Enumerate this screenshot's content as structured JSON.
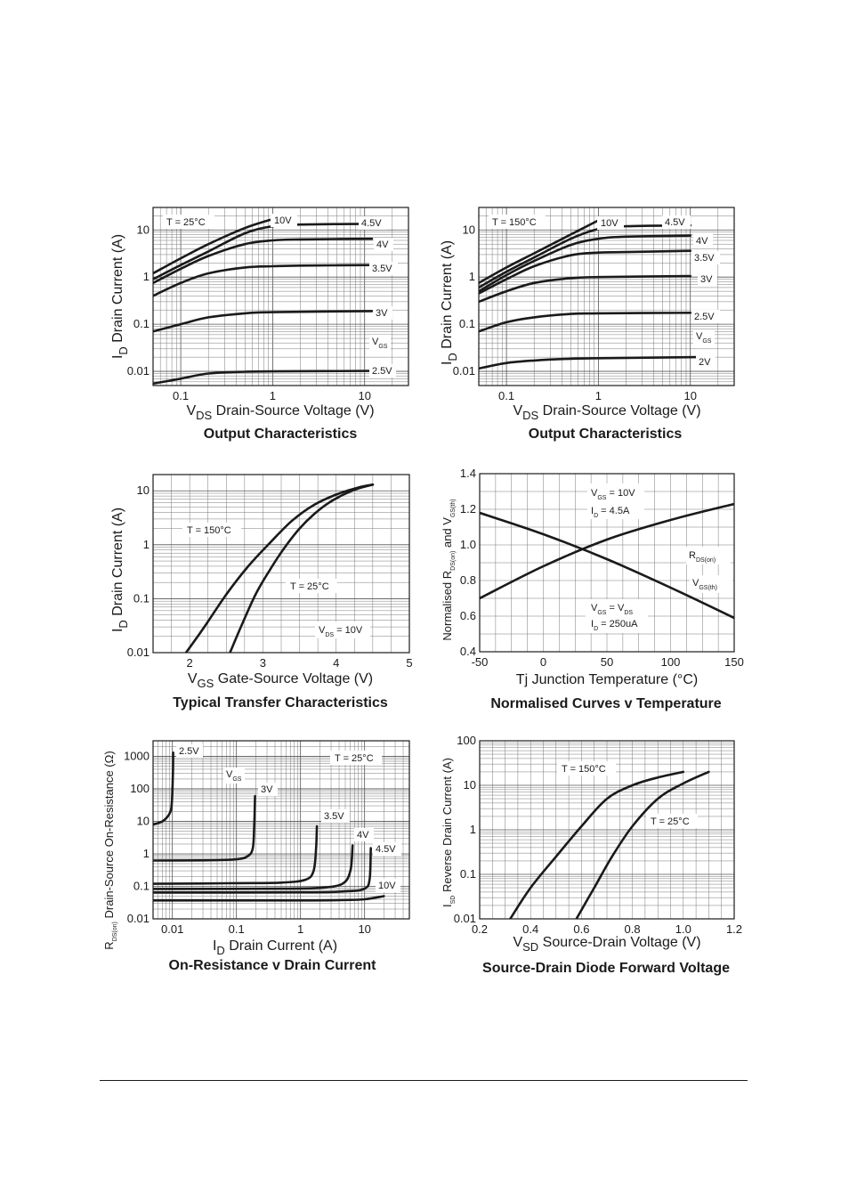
{
  "chart_data": [
    {
      "type": "line",
      "title": "Output Characteristics",
      "xlabel": "Drain-Source Voltage (V)",
      "xsym": "V",
      "xsub": "DS",
      "ylabel": "Drain Current (A)",
      "ysym": "I",
      "ysub": "D",
      "xscale": "log",
      "yscale": "log",
      "xlim": [
        0.05,
        30
      ],
      "ylim": [
        0.005,
        30
      ],
      "xticks": [
        {
          "v": 0.1,
          "t": "0.1"
        },
        {
          "v": 1,
          "t": "1"
        },
        {
          "v": 10,
          "t": "10"
        }
      ],
      "yticks": [
        {
          "v": 0.01,
          "t": "0.01"
        },
        {
          "v": 0.1,
          "t": "0.1"
        },
        {
          "v": 1,
          "t": "1"
        },
        {
          "v": 10,
          "t": "10"
        }
      ],
      "grid": true,
      "condition": "T = 25°C",
      "param": {
        "sym": "V",
        "sub": "GS"
      },
      "series": [
        {
          "name": "10V",
          "x": [
            0.05,
            0.1,
            0.2,
            0.5,
            1.0
          ],
          "y": [
            1.2,
            2.5,
            5.0,
            11,
            17
          ]
        },
        {
          "name": "4.5V",
          "x": [
            0.05,
            0.1,
            0.2,
            0.5,
            1,
            2,
            12
          ],
          "y": [
            0.9,
            1.8,
            3.5,
            8.5,
            12,
            13,
            13.5
          ]
        },
        {
          "name": "4V",
          "x": [
            0.05,
            0.1,
            0.2,
            0.5,
            1,
            2,
            12
          ],
          "y": [
            0.75,
            1.5,
            2.8,
            5.0,
            6.0,
            6.3,
            6.5
          ]
        },
        {
          "name": "3.5V",
          "x": [
            0.05,
            0.1,
            0.2,
            0.5,
            1,
            2,
            12
          ],
          "y": [
            0.4,
            0.75,
            1.2,
            1.6,
            1.7,
            1.75,
            1.8
          ]
        },
        {
          "name": "3V",
          "x": [
            0.05,
            0.1,
            0.2,
            0.5,
            1,
            12
          ],
          "y": [
            0.07,
            0.1,
            0.14,
            0.17,
            0.18,
            0.19
          ]
        },
        {
          "name": "2.5V",
          "x": [
            0.05,
            0.1,
            0.2,
            0.5,
            1,
            12
          ],
          "y": [
            0.0055,
            0.007,
            0.009,
            0.0098,
            0.01,
            0.0102
          ]
        }
      ]
    },
    {
      "type": "line",
      "title": "Output Characteristics",
      "xlabel": "Drain-Source Voltage (V)",
      "xsym": "V",
      "xsub": "DS",
      "ylabel": "Drain Current (A)",
      "ysym": "I",
      "ysub": "D",
      "xscale": "log",
      "yscale": "log",
      "xlim": [
        0.05,
        30
      ],
      "ylim": [
        0.005,
        30
      ],
      "xticks": [
        {
          "v": 0.1,
          "t": "0.1"
        },
        {
          "v": 1,
          "t": "1"
        },
        {
          "v": 10,
          "t": "10"
        }
      ],
      "yticks": [
        {
          "v": 0.01,
          "t": "0.01"
        },
        {
          "v": 0.1,
          "t": "0.1"
        },
        {
          "v": 1,
          "t": "1"
        },
        {
          "v": 10,
          "t": "10"
        }
      ],
      "grid": true,
      "condition": "T = 150°C",
      "param": {
        "sym": "V",
        "sub": "GS"
      },
      "series": [
        {
          "name": "10V",
          "x": [
            0.05,
            0.1,
            0.2,
            0.5,
            1.0
          ],
          "y": [
            0.75,
            1.6,
            3.2,
            8,
            16
          ]
        },
        {
          "name": "4.5V",
          "x": [
            0.05,
            0.1,
            0.2,
            0.5,
            1,
            2,
            10
          ],
          "y": [
            0.6,
            1.3,
            2.6,
            6.5,
            10.5,
            12,
            12.5
          ]
        },
        {
          "name": "4V",
          "x": [
            0.05,
            0.1,
            0.2,
            0.5,
            1,
            2,
            10
          ],
          "y": [
            0.5,
            1.1,
            2.2,
            4.8,
            6.5,
            7.2,
            7.6
          ]
        },
        {
          "name": "3.5V",
          "x": [
            0.05,
            0.1,
            0.2,
            0.5,
            1,
            2,
            10
          ],
          "y": [
            0.45,
            0.9,
            1.7,
            2.9,
            3.3,
            3.4,
            3.6
          ]
        },
        {
          "name": "3V",
          "x": [
            0.05,
            0.1,
            0.2,
            0.5,
            1,
            10
          ],
          "y": [
            0.3,
            0.5,
            0.75,
            0.95,
            1.0,
            1.05
          ]
        },
        {
          "name": "2.5V",
          "x": [
            0.05,
            0.1,
            0.2,
            0.5,
            1,
            10
          ],
          "y": [
            0.07,
            0.11,
            0.14,
            0.165,
            0.17,
            0.175
          ]
        },
        {
          "name": "2V",
          "x": [
            0.05,
            0.1,
            0.2,
            0.5,
            1,
            12
          ],
          "y": [
            0.0115,
            0.015,
            0.017,
            0.0185,
            0.019,
            0.02
          ]
        }
      ]
    },
    {
      "type": "line",
      "title": "Typical Transfer Characteristics",
      "xlabel": "Gate-Source Voltage (V)",
      "xsym": "V",
      "xsub": "GS",
      "ylabel": "Drain Current (A)",
      "ysym": "I",
      "ysub": "D",
      "xscale": "linear",
      "yscale": "log",
      "xlim": [
        1.5,
        5
      ],
      "ylim": [
        0.01,
        20
      ],
      "xticks": [
        {
          "v": 2,
          "t": "2"
        },
        {
          "v": 3,
          "t": "3"
        },
        {
          "v": 4,
          "t": "4"
        },
        {
          "v": 5,
          "t": "5"
        }
      ],
      "yticks": [
        {
          "v": 0.01,
          "t": "0.01"
        },
        {
          "v": 0.1,
          "t": "0.1"
        },
        {
          "v": 1,
          "t": "1"
        },
        {
          "v": 10,
          "t": "10"
        }
      ],
      "grid": true,
      "condition": "",
      "notes": [
        {
          "sym": "V",
          "sub": "DS",
          "text": " = 10V"
        }
      ],
      "series": [
        {
          "name": "T = 150°C",
          "x": [
            1.95,
            2.2,
            2.5,
            2.8,
            3.1,
            3.4,
            3.7,
            4.0,
            4.3,
            4.5
          ],
          "y": [
            0.01,
            0.03,
            0.12,
            0.4,
            1.1,
            2.8,
            5.5,
            8.5,
            11.5,
            13
          ]
        },
        {
          "name": "T = 25°C",
          "x": [
            2.55,
            2.7,
            2.9,
            3.1,
            3.3,
            3.5,
            3.7,
            3.9,
            4.1,
            4.3,
            4.5
          ],
          "y": [
            0.01,
            0.03,
            0.12,
            0.35,
            0.9,
            2.0,
            3.7,
            6.0,
            8.5,
            11,
            13
          ]
        }
      ]
    },
    {
      "type": "line",
      "title": "Normalised Curves v Temperature",
      "xlabel": "Tj  Junction Temperature (°C)",
      "ylabel": "Normalised R",
      "xscale": "linear",
      "yscale": "linear",
      "xlim": [
        -50,
        150
      ],
      "ylim": [
        0.4,
        1.4
      ],
      "xticks": [
        {
          "v": -50,
          "t": "-50"
        },
        {
          "v": 0,
          "t": "0"
        },
        {
          "v": 50,
          "t": "50"
        },
        {
          "v": 100,
          "t": "100"
        },
        {
          "v": 150,
          "t": "150"
        }
      ],
      "yticks": [
        {
          "v": 0.4,
          "t": "0.4"
        },
        {
          "v": 0.6,
          "t": "0.6"
        },
        {
          "v": 0.8,
          "t": "0.8"
        },
        {
          "v": 1.0,
          "t": "1.0"
        },
        {
          "v": 1.2,
          "t": "1.2"
        },
        {
          "v": 1.4,
          "t": "1.4"
        }
      ],
      "grid": true,
      "series": [
        {
          "name": "R",
          "sub": "DS(on)",
          "x": [
            -50,
            0,
            50,
            100,
            150
          ],
          "y": [
            0.7,
            0.88,
            1.03,
            1.14,
            1.23
          ]
        },
        {
          "name": "V",
          "sub": "GS(th)",
          "x": [
            -50,
            0,
            50,
            100,
            150
          ],
          "y": [
            1.18,
            1.06,
            0.92,
            0.76,
            0.59
          ]
        }
      ]
    },
    {
      "type": "line",
      "title": "On-Resistance v Drain Current",
      "xlabel": "Drain Current (A)",
      "xsym": "I",
      "xsub": "D",
      "ylabel": "Drain-Source On-Resistance (Ω)",
      "ysym": "R",
      "ysub": "DS(on)",
      "xscale": "log",
      "yscale": "log",
      "xlim": [
        0.005,
        50
      ],
      "ylim": [
        0.01,
        3000
      ],
      "xticks": [
        {
          "v": 0.01,
          "t": "0.01"
        },
        {
          "v": 0.1,
          "t": "0.1"
        },
        {
          "v": 1,
          "t": "1"
        },
        {
          "v": 10,
          "t": "10"
        }
      ],
      "yticks": [
        {
          "v": 0.01,
          "t": "0.01"
        },
        {
          "v": 0.1,
          "t": "0.1"
        },
        {
          "v": 1,
          "t": "1"
        },
        {
          "v": 10,
          "t": "10"
        },
        {
          "v": 100,
          "t": "100"
        },
        {
          "v": 1000,
          "t": "1000"
        }
      ],
      "grid": true,
      "condition": "T = 25°C",
      "param": {
        "sym": "V",
        "sub": "GS"
      },
      "series": [
        {
          "name": "2.5V",
          "x": [
            0.005,
            0.007,
            0.009,
            0.0098,
            0.0102,
            0.0103
          ],
          "y": [
            8,
            10,
            17,
            35,
            300,
            1300
          ]
        },
        {
          "name": "3V",
          "x": [
            0.005,
            0.03,
            0.1,
            0.15,
            0.18,
            0.19,
            0.195
          ],
          "y": [
            0.62,
            0.63,
            0.68,
            0.85,
            1.5,
            8,
            60
          ]
        },
        {
          "name": "3.5V",
          "x": [
            0.005,
            0.1,
            0.5,
            1.2,
            1.6,
            1.75,
            1.8
          ],
          "y": [
            0.12,
            0.125,
            0.13,
            0.16,
            0.3,
            1.5,
            7
          ]
        },
        {
          "name": "4V",
          "x": [
            0.005,
            0.5,
            2,
            4.5,
            6,
            6.5
          ],
          "y": [
            0.083,
            0.085,
            0.09,
            0.12,
            0.3,
            1.8
          ]
        },
        {
          "name": "4.5V",
          "x": [
            0.005,
            1,
            5,
            10,
            12,
            12.5
          ],
          "y": [
            0.065,
            0.066,
            0.07,
            0.085,
            0.17,
            1.5
          ]
        },
        {
          "name": "10V",
          "x": [
            0.005,
            1,
            5,
            10,
            20
          ],
          "y": [
            0.037,
            0.037,
            0.038,
            0.04,
            0.05
          ]
        }
      ]
    },
    {
      "type": "line",
      "title": "Source-Drain Diode Forward Voltage",
      "xlabel": "Source-Drain Voltage (V)",
      "xsym": "V",
      "xsub": "SD",
      "ylabel": "Reverse Drain Current (A)",
      "ysym": "I",
      "ysub": "SD",
      "xscale": "linear",
      "yscale": "log",
      "xlim": [
        0.2,
        1.2
      ],
      "ylim": [
        0.01,
        100
      ],
      "xticks": [
        {
          "v": 0.2,
          "t": "0.2"
        },
        {
          "v": 0.4,
          "t": "0.4"
        },
        {
          "v": 0.6,
          "t": "0.6"
        },
        {
          "v": 0.8,
          "t": "0.8"
        },
        {
          "v": 1.0,
          "t": "1.0"
        },
        {
          "v": 1.2,
          "t": "1.2"
        }
      ],
      "yticks": [
        {
          "v": 0.01,
          "t": "0.01"
        },
        {
          "v": 0.1,
          "t": "0.1"
        },
        {
          "v": 1,
          "t": "1"
        },
        {
          "v": 10,
          "t": "10"
        },
        {
          "v": 100,
          "t": "100"
        }
      ],
      "grid": true,
      "series": [
        {
          "name": "T = 150°C",
          "x": [
            0.32,
            0.4,
            0.5,
            0.6,
            0.7,
            0.8,
            0.9,
            1.0
          ],
          "y": [
            0.01,
            0.05,
            0.25,
            1.2,
            5,
            10,
            15,
            20
          ]
        },
        {
          "name": "T = 25°C",
          "x": [
            0.58,
            0.65,
            0.72,
            0.8,
            0.9,
            1.0,
            1.1
          ],
          "y": [
            0.01,
            0.05,
            0.25,
            1.2,
            5,
            11,
            20
          ]
        }
      ]
    }
  ]
}
